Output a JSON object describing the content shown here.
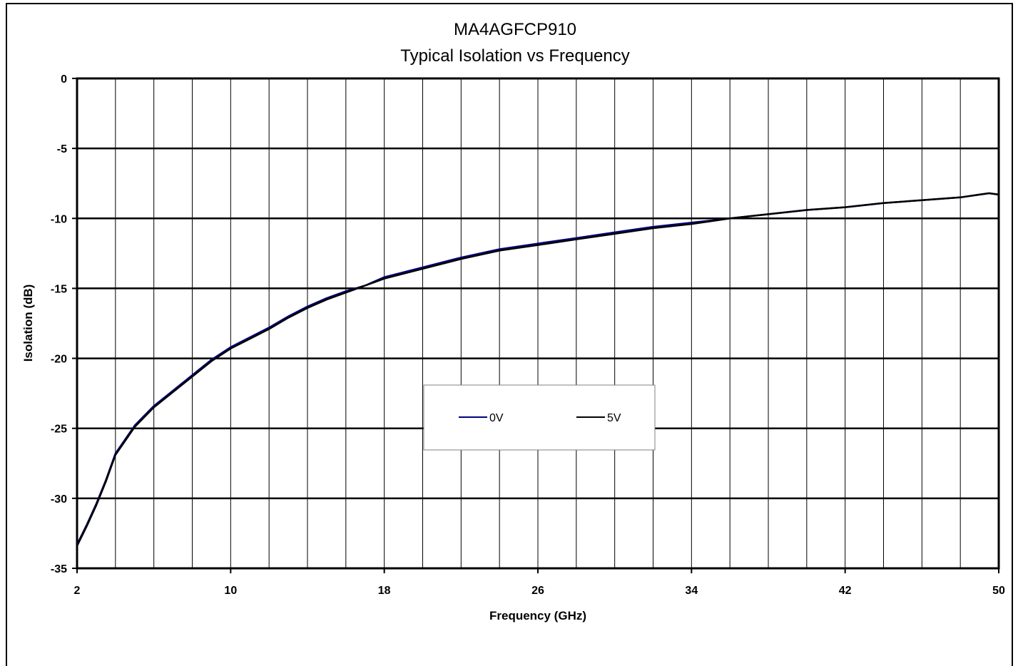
{
  "chart_data": {
    "type": "line",
    "title": "MA4AGFCP910",
    "subtitle": "Typical  Isolation vs Frequency",
    "xlabel": "Frequency (GHz)",
    "ylabel": "Isolation (dB)",
    "xlim": [
      2,
      50
    ],
    "ylim": [
      -35,
      0
    ],
    "x_ticks": [
      2,
      10,
      18,
      26,
      34,
      42,
      50
    ],
    "y_ticks": [
      0,
      -5,
      -10,
      -15,
      -20,
      -25,
      -30,
      -35
    ],
    "x_minor_step": 2,
    "grid": true,
    "legend_position": "center",
    "series": [
      {
        "name": "0V",
        "color": "#00007f",
        "x": [
          2,
          2.5,
          3,
          3.5,
          4,
          4.5,
          5,
          5.5,
          6,
          7,
          8,
          9,
          10,
          11,
          12,
          13,
          14,
          15,
          16,
          17,
          18,
          20,
          22,
          24,
          26,
          28,
          30,
          32,
          34,
          36,
          38,
          40,
          42,
          44,
          46,
          48,
          49,
          49.5,
          50
        ],
        "y": [
          -33.3,
          -31.9,
          -30.4,
          -28.7,
          -26.8,
          -25.8,
          -24.8,
          -24.1,
          -23.4,
          -22.3,
          -21.2,
          -20.1,
          -19.2,
          -18.5,
          -17.8,
          -17.0,
          -16.3,
          -15.7,
          -15.2,
          -14.8,
          -14.2,
          -13.5,
          -12.8,
          -12.2,
          -11.8,
          -11.4,
          -11.0,
          -10.6,
          -10.3,
          -10.0,
          -9.7,
          -9.4,
          -9.2,
          -8.9,
          -8.7,
          -8.5,
          -8.3,
          -8.2,
          -8.3
        ]
      },
      {
        "name": "5V",
        "color": "#000000",
        "x": [
          2,
          2.5,
          3,
          3.5,
          4,
          4.5,
          5,
          5.5,
          6,
          7,
          8,
          9,
          10,
          11,
          12,
          13,
          14,
          15,
          16,
          17,
          18,
          20,
          22,
          24,
          26,
          28,
          30,
          32,
          34,
          36,
          38,
          40,
          42,
          44,
          46,
          48,
          49,
          49.5,
          50
        ],
        "y": [
          -33.4,
          -32.0,
          -30.5,
          -28.8,
          -26.9,
          -25.9,
          -24.9,
          -24.2,
          -23.5,
          -22.4,
          -21.3,
          -20.2,
          -19.3,
          -18.6,
          -17.9,
          -17.1,
          -16.4,
          -15.8,
          -15.3,
          -14.8,
          -14.3,
          -13.6,
          -12.9,
          -12.3,
          -11.9,
          -11.5,
          -11.1,
          -10.7,
          -10.4,
          -10.0,
          -9.7,
          -9.4,
          -9.2,
          -8.9,
          -8.7,
          -8.5,
          -8.3,
          -8.2,
          -8.3
        ]
      }
    ]
  }
}
